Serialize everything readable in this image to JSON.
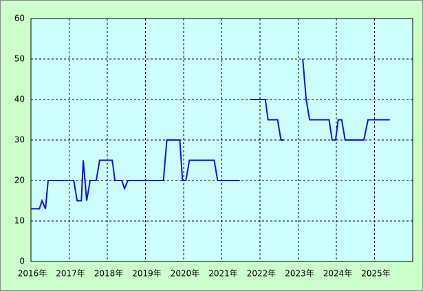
{
  "chart_data": {
    "type": "line",
    "x": [
      2016.0,
      2016.22,
      2016.29,
      2016.38,
      2016.45,
      2017.12,
      2017.21,
      2017.32,
      2017.37,
      2017.46,
      2017.55,
      2017.71,
      2017.8,
      2018.13,
      2018.2,
      2018.38,
      2018.45,
      2018.54,
      2019.47,
      2019.56,
      2019.9,
      2019.97,
      2020.06,
      2020.15,
      2020.8,
      2020.89,
      2021.47,
      2021.6,
      2021.74,
      2022.14,
      2022.21,
      2022.46,
      2022.55,
      2022.62,
      2022.9,
      2023.12,
      2023.21,
      2023.3,
      2023.81,
      2023.89,
      2023.98,
      2024.05,
      2024.14,
      2024.23,
      2024.72,
      2024.83,
      2025.4
    ],
    "series": [
      {
        "color": "#1010ff",
        "values": [
          13,
          13,
          15,
          13,
          20,
          20,
          15,
          15,
          25,
          15,
          20,
          20,
          25,
          25,
          20,
          20,
          18,
          20,
          20,
          30,
          30,
          20,
          20,
          25,
          25,
          20,
          20,
          null,
          40,
          40,
          35,
          35,
          30,
          30,
          null,
          50,
          40,
          35,
          35,
          30,
          30,
          35,
          35,
          30,
          30,
          35,
          35
        ]
      }
    ],
    "xlim": [
      2016,
      2026
    ],
    "xticks": [
      {
        "value": 2016,
        "label": "2016年"
      },
      {
        "value": 2017,
        "label": "2017年"
      },
      {
        "value": 2018,
        "label": "2018年"
      },
      {
        "value": 2019,
        "label": "2019年"
      },
      {
        "value": 2020,
        "label": "2020年"
      },
      {
        "value": 2021,
        "label": "2021年"
      },
      {
        "value": 2022,
        "label": "2022年"
      },
      {
        "value": 2023,
        "label": "2023年"
      },
      {
        "value": 2024,
        "label": "2024年"
      },
      {
        "value": 2025,
        "label": "2025年"
      }
    ],
    "ylim": [
      0,
      60
    ],
    "yticks": [
      0,
      10,
      20,
      30,
      40,
      50,
      60
    ],
    "grid": true
  }
}
